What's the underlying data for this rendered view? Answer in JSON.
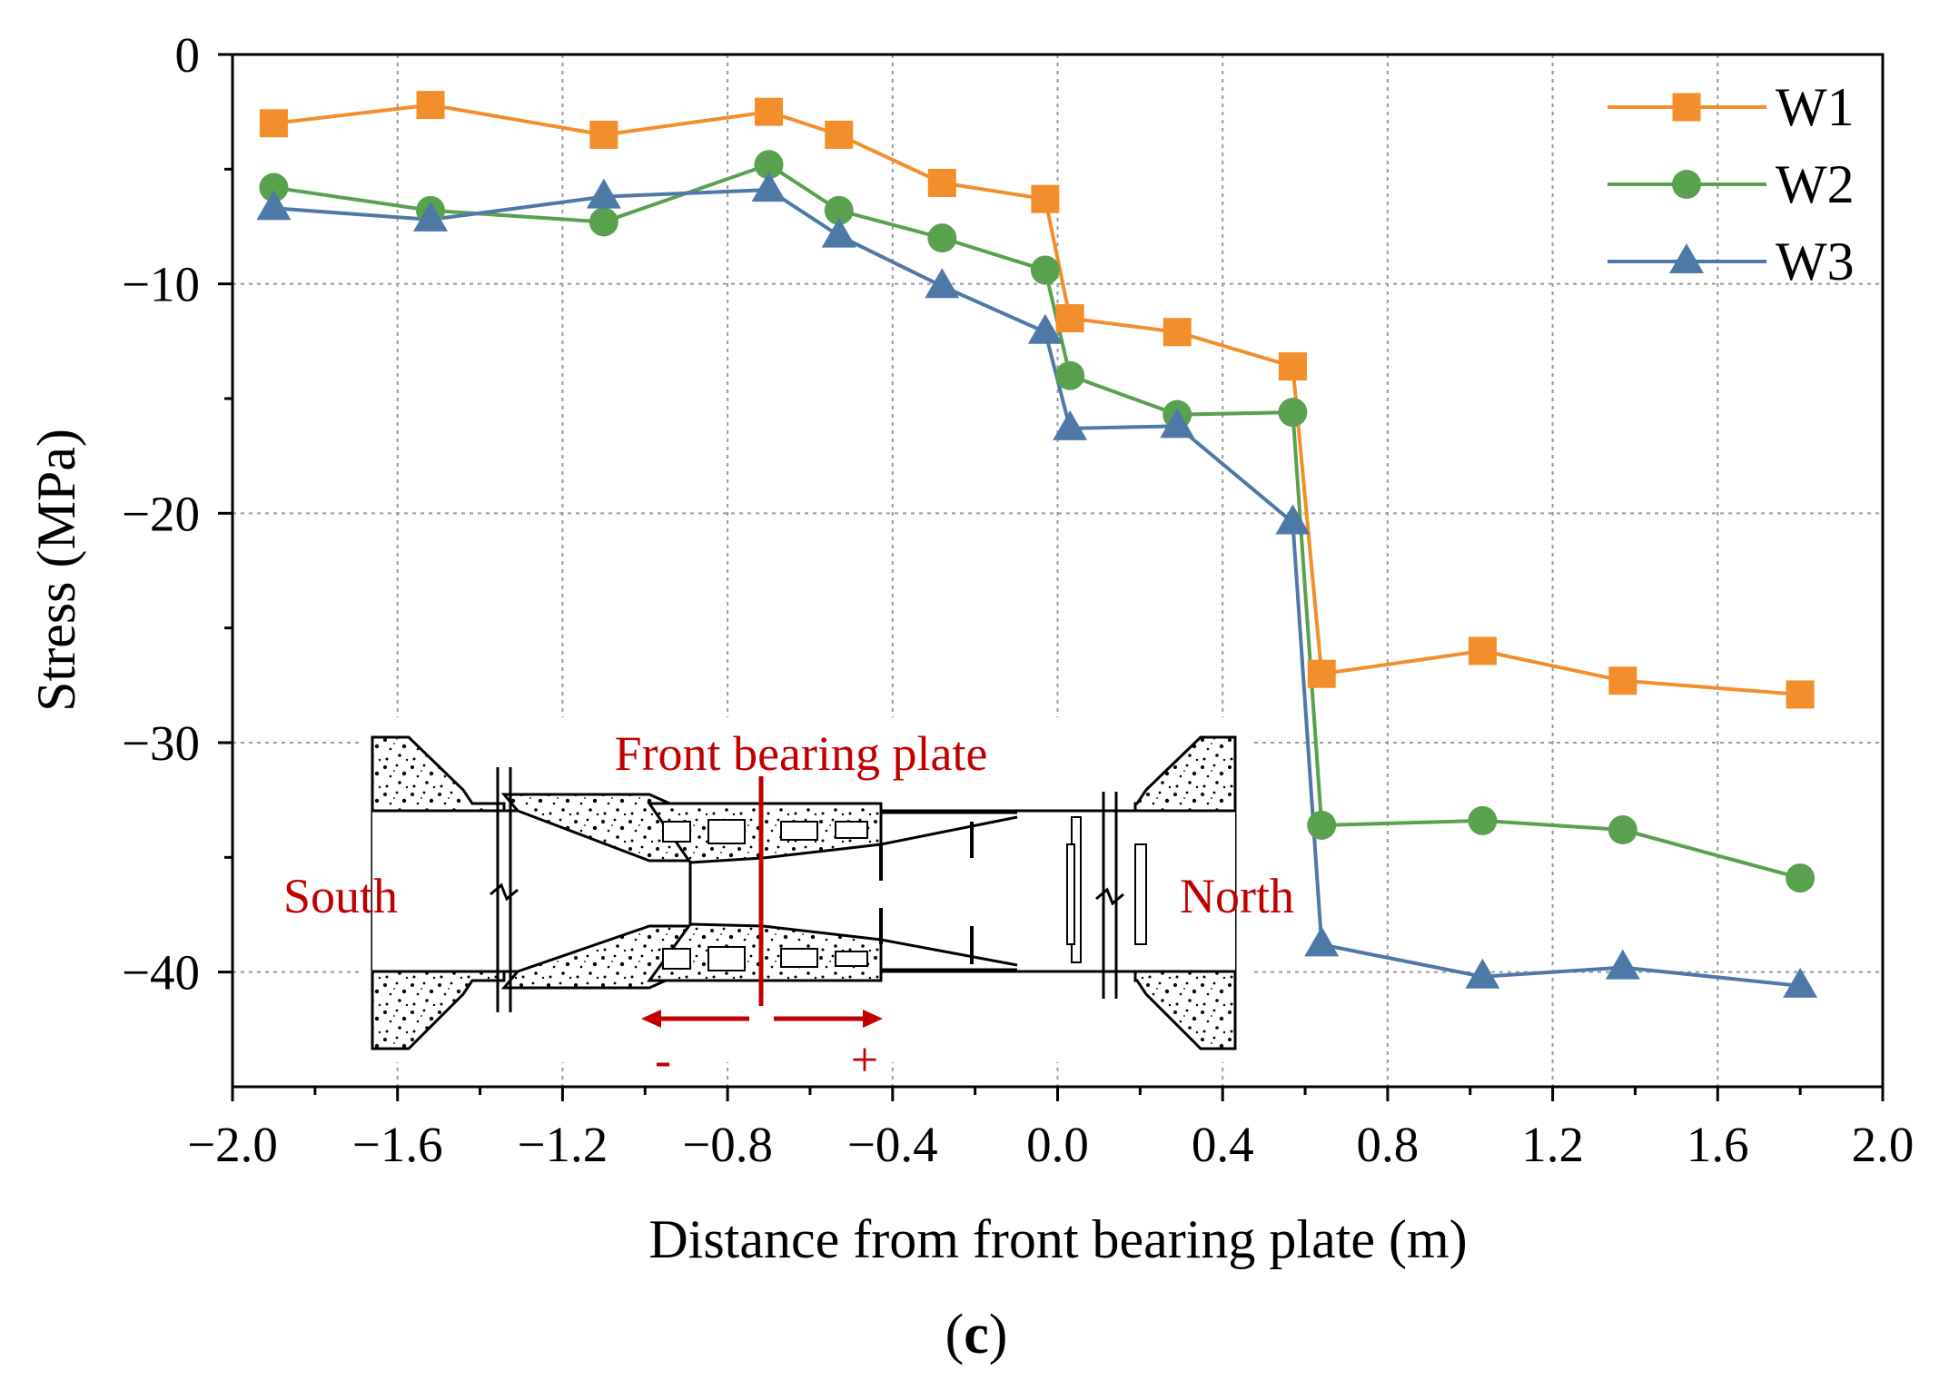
{
  "chart_data": {
    "type": "line",
    "title": "",
    "xlabel": "Distance from front bearing plate (m)",
    "ylabel": "Stress (MPa)",
    "panel_label_open": "(",
    "panel_label_letter": "c",
    "panel_label_close": ")",
    "xlim": [
      -2.0,
      2.0
    ],
    "ylim": [
      -45,
      0
    ],
    "x_ticks": [
      -2.0,
      -1.6,
      -1.2,
      -0.8,
      -0.4,
      0.0,
      0.4,
      0.8,
      1.2,
      1.6,
      2.0
    ],
    "x_tick_labels": [
      "−2.0",
      "−1.6",
      "−1.2",
      "−0.8",
      "−0.4",
      "0.0",
      "0.4",
      "0.8",
      "1.2",
      "1.6",
      "2.0"
    ],
    "y_ticks": [
      0,
      -10,
      -20,
      -30,
      -40
    ],
    "y_tick_labels": [
      "0",
      "−10",
      "−20",
      "−30",
      "−40"
    ],
    "grid": true,
    "legend_position": "top-right",
    "series": [
      {
        "name": "W1",
        "color": "#f28e2b",
        "marker": "square",
        "x": [
          -1.9,
          -1.52,
          -1.1,
          -0.7,
          -0.53,
          -0.28,
          -0.03,
          0.03,
          0.29,
          0.57,
          0.64,
          1.03,
          1.37,
          1.8
        ],
        "y": [
          -3.0,
          -2.2,
          -3.5,
          -2.5,
          -3.5,
          -5.6,
          -6.3,
          -11.5,
          -12.1,
          -13.6,
          -27.0,
          -26.0,
          -27.3,
          -27.9
        ]
      },
      {
        "name": "W2",
        "color": "#59a14f",
        "marker": "circle",
        "x": [
          -1.9,
          -1.52,
          -1.1,
          -0.7,
          -0.53,
          -0.28,
          -0.03,
          0.03,
          0.29,
          0.57,
          0.64,
          1.03,
          1.37,
          1.8
        ],
        "y": [
          -5.8,
          -6.8,
          -7.3,
          -4.8,
          -6.8,
          -8.0,
          -9.4,
          -14.0,
          -15.7,
          -15.6,
          -33.6,
          -33.4,
          -33.8,
          -35.9
        ]
      },
      {
        "name": "W3",
        "color": "#4e79a7",
        "marker": "triangle",
        "x": [
          -1.9,
          -1.52,
          -1.1,
          -0.7,
          -0.53,
          -0.28,
          -0.03,
          0.03,
          0.29,
          0.57,
          0.64,
          1.03,
          1.37,
          1.8
        ],
        "y": [
          -6.7,
          -7.2,
          -6.2,
          -5.9,
          -7.9,
          -10.1,
          -12.1,
          -16.3,
          -16.2,
          -20.4,
          -38.8,
          -40.2,
          -39.8,
          -40.6
        ]
      }
    ],
    "annotations": {
      "front_bearing_plate": "Front bearing plate",
      "south": "South",
      "north": "North",
      "minus": "-",
      "plus": "+"
    }
  }
}
